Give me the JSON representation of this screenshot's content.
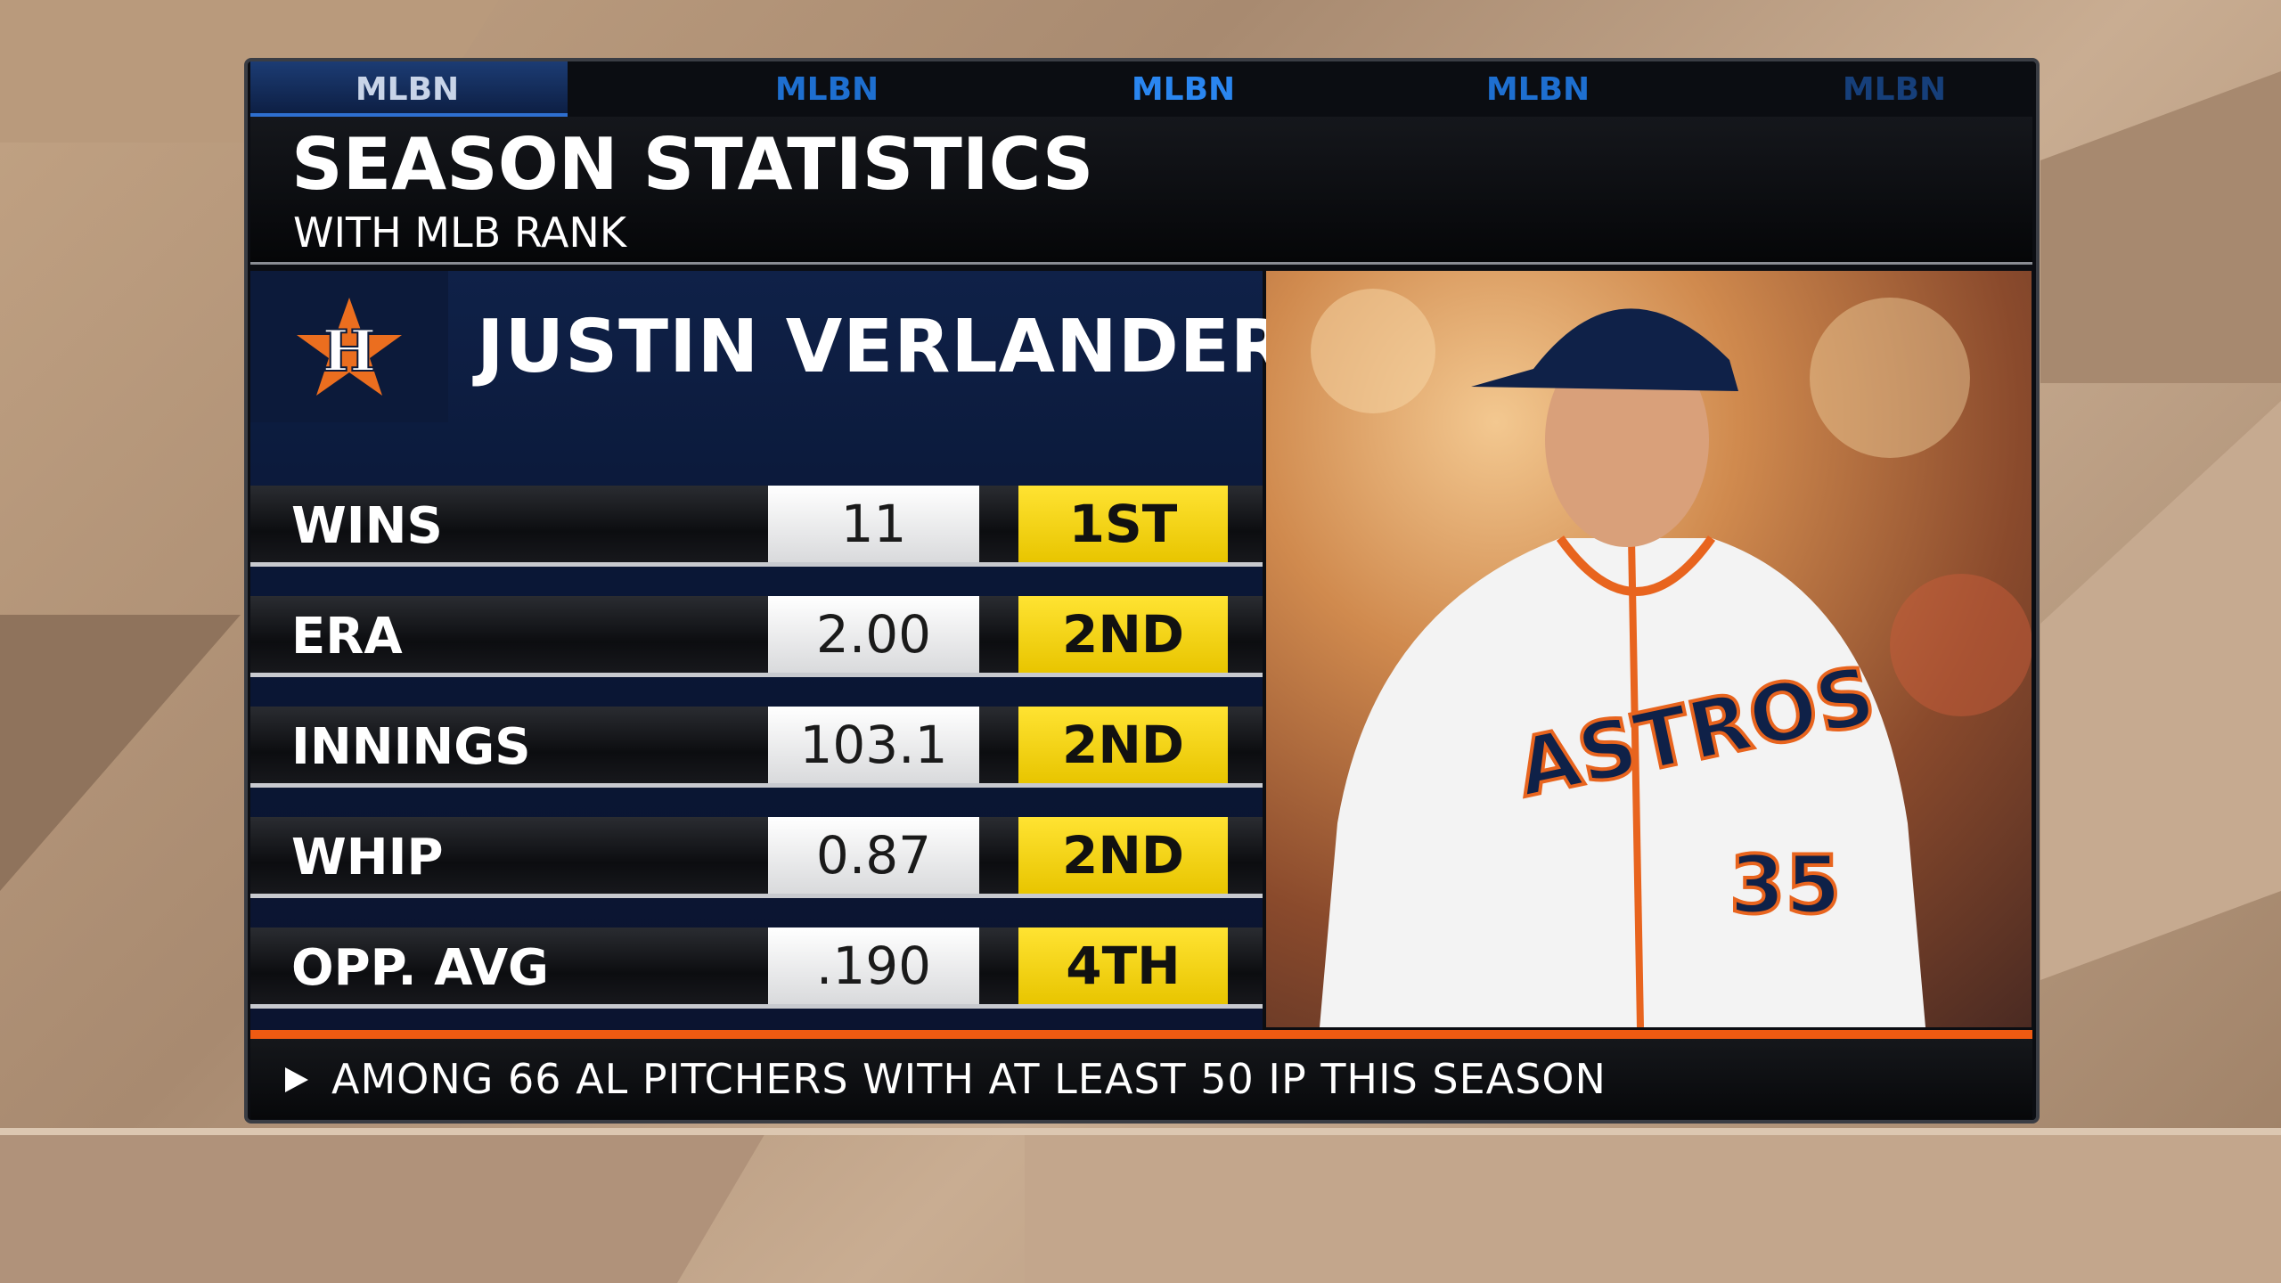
{
  "tabs": [
    "MLBN",
    "MLBN",
    "MLBN",
    "MLBN",
    "MLBN"
  ],
  "header": {
    "title": "SEASON STATISTICS",
    "subtitle": "WITH MLB RANK"
  },
  "player": {
    "name": "JUSTIN VERLANDER",
    "jersey_number": "35",
    "team_wordmark": "ASTROS"
  },
  "table": {
    "rows": [
      [
        "WINS",
        "11",
        "1ST"
      ],
      [
        "ERA",
        "2.00",
        "2ND"
      ],
      [
        "INNINGS",
        "103.1",
        "2ND"
      ],
      [
        "WHIP",
        "0.87",
        "2ND"
      ],
      [
        "OPP. AVG",
        ".190",
        "4TH"
      ]
    ]
  },
  "footer": {
    "note": "AMONG 66 AL PITCHERS WITH AT LEAST 50 IP THIS SEASON"
  }
}
